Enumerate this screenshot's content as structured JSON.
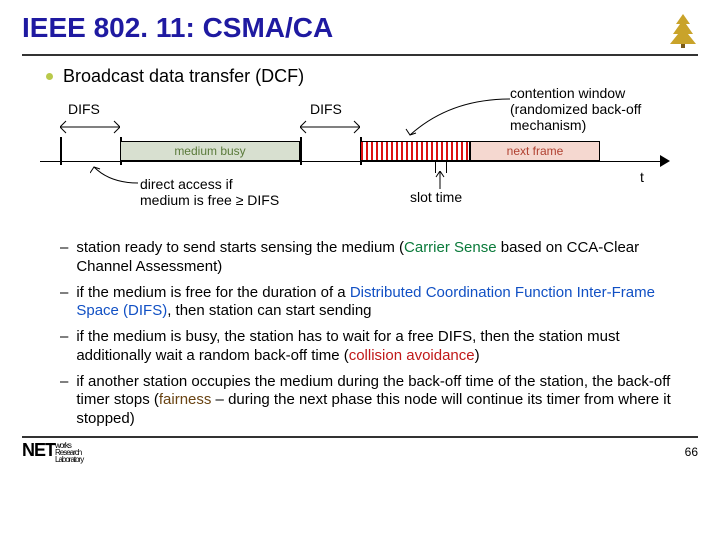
{
  "title": "IEEE 802. 11: CSMA/CA",
  "bullet1": "Broadcast data transfer (DCF)",
  "diagram": {
    "difs1": "DIFS",
    "difs2": "DIFS",
    "mediumBusy": "medium busy",
    "nextFrame": "next frame",
    "direct1": "direct access if",
    "direct2": "medium is free ≥ DIFS",
    "contention1": "contention window",
    "contention2": "(randomized back-off",
    "contention3": "mechanism)",
    "slotTime": "slot time",
    "t": "t",
    "colors": {
      "mediumBusy_bg": "#d8e0d0",
      "mediumBusy_fg": "#5a7a3a",
      "nextFrame_bg": "#f5d8d0",
      "nextFrame_fg": "#b04030"
    },
    "layout": {
      "tick_difs1_start": 20,
      "tick_difs1_end": 80,
      "medium_start": 80,
      "medium_end": 260,
      "tick_difs2_start": 260,
      "tick_difs2_end": 320,
      "contention_start": 320,
      "contention_end": 430,
      "nextframe_start": 430,
      "nextframe_end": 560
    }
  },
  "bullets2": [
    {
      "pre": "station ready to send starts sensing the medium (",
      "em": "Carrier Sense",
      "emClass": "em-green",
      "post": " based on CCA-Clear Channel Assessment)"
    },
    {
      "pre": "if the medium is free for the duration of a ",
      "em": "Distributed Coordination Function Inter-Frame Space (DIFS)",
      "emClass": "em-blue",
      "post": ", then station can start sending"
    },
    {
      "pre": "if the medium is busy, the station has to wait for a free DIFS, then the station must additionally wait a random back-off time (",
      "em": "collision avoidance",
      "emClass": "em-red",
      "post": ")"
    },
    {
      "pre": "if another station occupies the medium during the back-off time of the station, the back-off timer stops (",
      "em": "fairness",
      "emClass": "em-brown",
      "post": " – during the next phase this node will continue its timer from where it stopped)"
    }
  ],
  "footer": {
    "net": "NET",
    "sub1": "works",
    "sub2": "Research",
    "sub3": "Laboratory",
    "page": "66"
  }
}
